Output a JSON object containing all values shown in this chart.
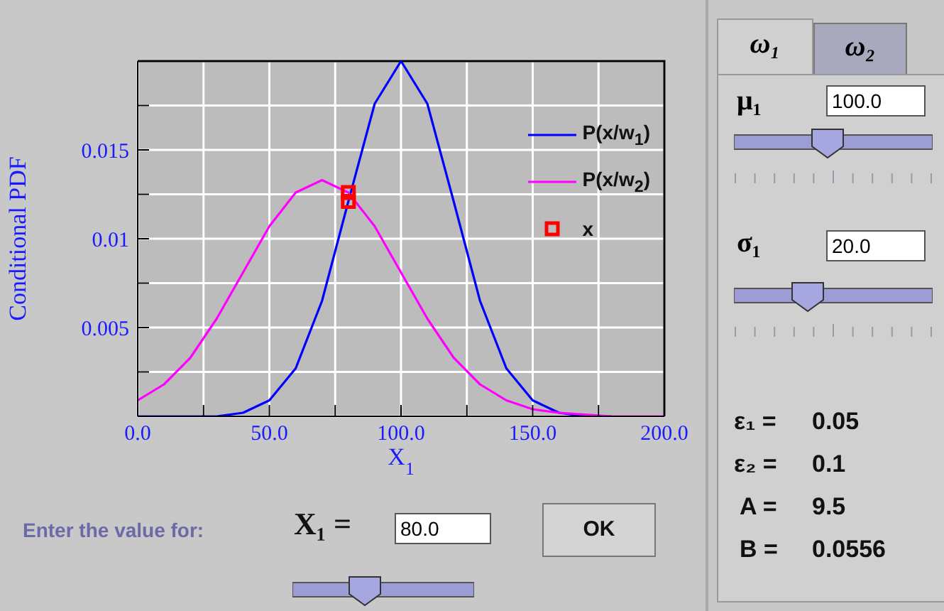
{
  "chart_data": {
    "type": "line",
    "xlabel": "X$_{1}$",
    "ylabel": "Conditional PDF",
    "x": [
      0,
      10,
      20,
      30,
      40,
      50,
      60,
      70,
      80,
      90,
      100,
      110,
      120,
      130,
      140,
      150,
      160,
      170,
      180,
      190,
      200
    ],
    "series": [
      {
        "name": "P(x/w$_{1}$)",
        "color": "#0000ff",
        "values": [
          0,
          0,
          0,
          0,
          0.0002,
          0.0009,
          0.0027,
          0.0065,
          0.0121,
          0.0176,
          0.02,
          0.0176,
          0.0121,
          0.0065,
          0.0027,
          0.0009,
          0.0002,
          0,
          0,
          null,
          null
        ]
      },
      {
        "name": "P(x/w$_{2}$)",
        "color": "#ff00ff",
        "values": [
          0.0009,
          0.0018,
          0.0033,
          0.0055,
          0.0081,
          0.0107,
          0.0126,
          0.0133,
          0.0126,
          0.0107,
          0.0081,
          0.0055,
          0.0033,
          0.0018,
          0.0009,
          0.0004,
          0.0002,
          0.0001,
          0,
          0,
          0
        ]
      },
      {
        "name": "x",
        "type": "scatter",
        "marker": "square",
        "color": "#ff0000",
        "values": [
          null,
          null,
          null,
          null,
          null,
          null,
          null,
          null,
          0.0126,
          null,
          null,
          null,
          null,
          null,
          null,
          null,
          null,
          null,
          null,
          null,
          null
        ]
      },
      {
        "type": "scatter",
        "marker": "square",
        "color": "#ff0000",
        "values": [
          null,
          null,
          null,
          null,
          null,
          null,
          null,
          null,
          0.0121,
          null,
          null,
          null,
          null,
          null,
          null,
          null,
          null,
          null,
          null,
          null,
          null
        ]
      }
    ],
    "xlim": [
      0,
      200
    ],
    "xticks": [
      {
        "value": 0,
        "label": "0.0"
      },
      {
        "value": 25,
        "label": null
      },
      {
        "value": 50,
        "label": "50.0"
      },
      {
        "value": 75,
        "label": null
      },
      {
        "value": 100,
        "label": "100.0"
      },
      {
        "value": 125,
        "label": null
      },
      {
        "value": 150,
        "label": "150.0"
      },
      {
        "value": 175,
        "label": null
      },
      {
        "value": 200,
        "label": "200.0"
      }
    ],
    "ylim": [
      0,
      0.02
    ],
    "yticks": [
      {
        "value": 0,
        "label": null
      },
      {
        "value": 0.0025,
        "label": null
      },
      0.005,
      {
        "value": 0.0075,
        "label": null
      },
      0.01,
      {
        "value": 0.0125,
        "label": null
      },
      0.015,
      {
        "value": 0.0175,
        "label": null
      },
      {
        "value": 0.02,
        "label": null
      }
    ],
    "grid": true,
    "legend": "top right",
    "marker": "none",
    "line_style": "solid",
    "annotations": [
      "ω₁",
      "ω₂",
      "μ₁",
      "100.0",
      "σ₁",
      "20.0",
      "ε₁ =",
      "0.05",
      "ε₂ =",
      "0.1",
      "A =",
      "9.5",
      "B =",
      "0.0556",
      "Enter the value for:",
      "X₁ =",
      "80.0",
      "OK"
    ]
  }
}
